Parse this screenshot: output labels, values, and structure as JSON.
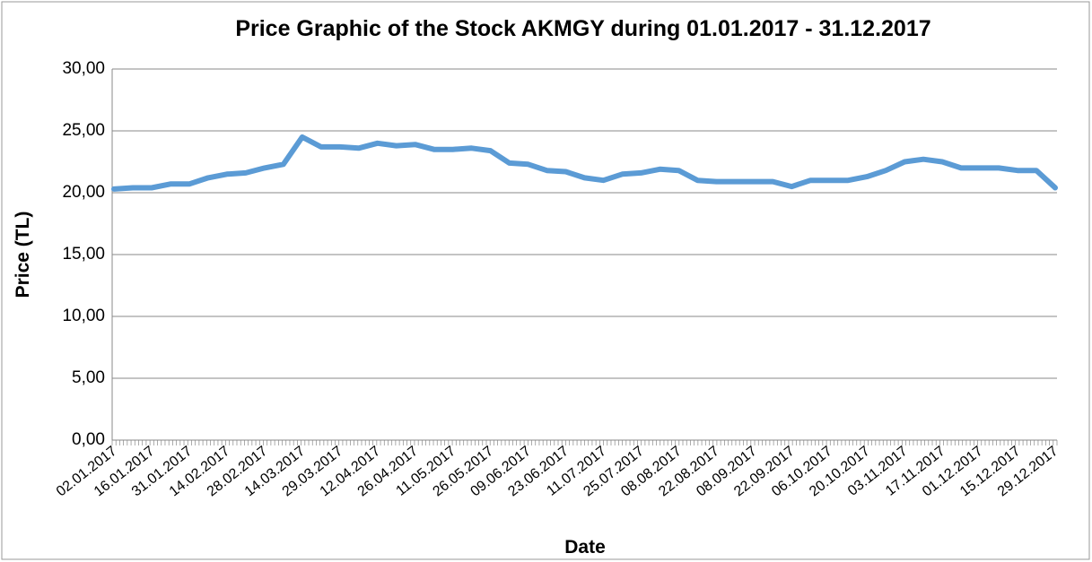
{
  "chart_data": {
    "type": "line",
    "title": "Price Graphic of the Stock AKMGY during 01.01.2017 - 31.12.2017",
    "xlabel": "Date",
    "ylabel": "Price (TL)",
    "categories": [
      "02.01.2017",
      null,
      "16.01.2017",
      null,
      "31.01.2017",
      null,
      "14.02.2017",
      null,
      "28.02.2017",
      null,
      "14.03.2017",
      null,
      "29.03.2017",
      null,
      "12.04.2017",
      null,
      "26.04.2017",
      null,
      "11.05.2017",
      null,
      "26.05.2017",
      null,
      "09.06.2017",
      null,
      "23.06.2017",
      null,
      "11.07.2017",
      null,
      "25.07.2017",
      null,
      "08.08.2017",
      null,
      "22.08.2017",
      null,
      "08.09.2017",
      null,
      "22.09.2017",
      null,
      "06.10.2017",
      null,
      "20.10.2017",
      null,
      "03.11.2017",
      null,
      "17.11.2017",
      null,
      "01.12.2017",
      null,
      "15.12.2017",
      null,
      "29.12.2017"
    ],
    "series": [
      {
        "name": "Price",
        "color": "#5b9bd5",
        "values": [
          20.3,
          20.4,
          20.4,
          20.7,
          20.7,
          21.2,
          21.5,
          21.6,
          22.0,
          22.3,
          24.5,
          23.7,
          23.7,
          23.6,
          24.0,
          23.8,
          23.9,
          23.5,
          23.5,
          23.6,
          23.4,
          22.4,
          22.3,
          21.8,
          21.7,
          21.2,
          21.0,
          21.5,
          21.6,
          21.9,
          21.8,
          21.0,
          20.9,
          20.9,
          20.9,
          20.9,
          20.5,
          21.0,
          21.0,
          21.0,
          21.3,
          21.8,
          22.5,
          22.7,
          22.5,
          22.0,
          22.0,
          22.0,
          21.8,
          21.8,
          20.4
        ]
      }
    ],
    "ylim": [
      0,
      30
    ],
    "yticks": [
      {
        "value": 0,
        "label": "0,00"
      },
      {
        "value": 5,
        "label": "5,00"
      },
      {
        "value": 10,
        "label": "10,00"
      },
      {
        "value": 15,
        "label": "15,00"
      },
      {
        "value": 20,
        "label": "20,00"
      },
      {
        "value": 25,
        "label": "25,00"
      },
      {
        "value": 30,
        "label": "30,00"
      }
    ],
    "grid": true
  }
}
